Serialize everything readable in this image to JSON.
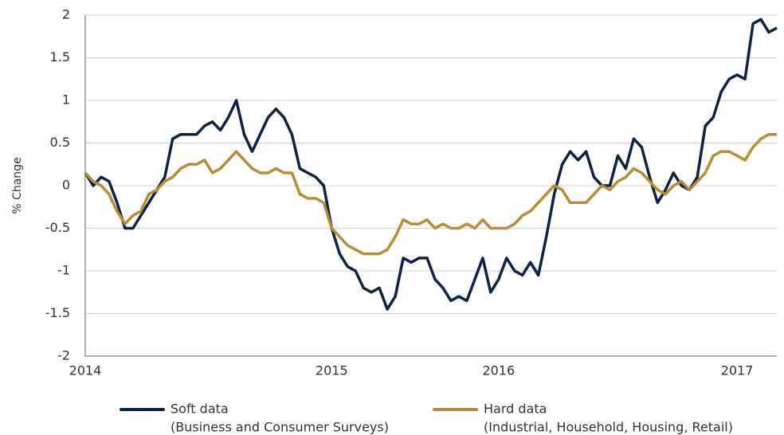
{
  "chart_data": {
    "type": "line",
    "y_label": "% Change",
    "categories": [
      "2014",
      null,
      null,
      null,
      null,
      null,
      null,
      null,
      null,
      null,
      null,
      null,
      null,
      null,
      null,
      null,
      null,
      null,
      null,
      null,
      null,
      null,
      null,
      null,
      null,
      null,
      null,
      null,
      null,
      null,
      null,
      "2015",
      null,
      null,
      null,
      null,
      null,
      null,
      null,
      null,
      null,
      null,
      null,
      null,
      null,
      null,
      null,
      null,
      null,
      null,
      null,
      null,
      "2016",
      null,
      null,
      null,
      null,
      null,
      null,
      null,
      null,
      null,
      null,
      null,
      null,
      null,
      null,
      null,
      null,
      null,
      null,
      null,
      null,
      null,
      null,
      null,
      null,
      null,
      null,
      null,
      null,
      null,
      "2017",
      null,
      null,
      null,
      null,
      null
    ],
    "series": [
      {
        "name": "Soft data",
        "legend_note": "(Business and Consumer Surveys)",
        "color": "#0e2344",
        "values": [
          0.15,
          0.0,
          0.1,
          0.05,
          -0.2,
          -0.5,
          -0.5,
          -0.35,
          -0.2,
          -0.05,
          0.1,
          0.55,
          0.6,
          0.6,
          0.6,
          0.7,
          0.75,
          0.65,
          0.8,
          1.0,
          0.6,
          0.4,
          0.6,
          0.8,
          0.9,
          0.8,
          0.6,
          0.2,
          0.15,
          0.1,
          0.0,
          -0.5,
          -0.8,
          -0.95,
          -1.0,
          -1.2,
          -1.25,
          -1.2,
          -1.45,
          -1.3,
          -0.85,
          -0.9,
          -0.85,
          -0.85,
          -1.1,
          -1.2,
          -1.35,
          -1.3,
          -1.35,
          -1.1,
          -0.85,
          -1.25,
          -1.1,
          -0.85,
          -1.0,
          -1.05,
          -0.9,
          -1.05,
          -0.6,
          -0.1,
          0.25,
          0.4,
          0.3,
          0.4,
          0.1,
          0.0,
          0.0,
          0.35,
          0.2,
          0.55,
          0.45,
          0.1,
          -0.2,
          -0.05,
          0.15,
          0.0,
          -0.05,
          0.1,
          0.7,
          0.8,
          1.1,
          1.25,
          1.3,
          1.25,
          1.9,
          1.95,
          1.8,
          1.85
        ]
      },
      {
        "name": "Hard data",
        "legend_note": "(Industrial, Household, Housing, Retail)",
        "color": "#b58e35",
        "values": [
          0.15,
          0.05,
          0.0,
          -0.1,
          -0.3,
          -0.45,
          -0.35,
          -0.3,
          -0.1,
          -0.05,
          0.05,
          0.1,
          0.2,
          0.25,
          0.25,
          0.3,
          0.15,
          0.2,
          0.3,
          0.4,
          0.3,
          0.2,
          0.15,
          0.15,
          0.2,
          0.15,
          0.15,
          -0.1,
          -0.15,
          -0.15,
          -0.2,
          -0.5,
          -0.6,
          -0.7,
          -0.75,
          -0.8,
          -0.8,
          -0.8,
          -0.75,
          -0.6,
          -0.4,
          -0.45,
          -0.45,
          -0.4,
          -0.5,
          -0.45,
          -0.5,
          -0.5,
          -0.45,
          -0.5,
          -0.4,
          -0.5,
          -0.5,
          -0.5,
          -0.45,
          -0.35,
          -0.3,
          -0.2,
          -0.1,
          0.0,
          -0.05,
          -0.2,
          -0.2,
          -0.2,
          -0.1,
          0.0,
          -0.05,
          0.05,
          0.1,
          0.2,
          0.15,
          0.05,
          -0.05,
          -0.1,
          0.0,
          0.05,
          -0.05,
          0.05,
          0.15,
          0.35,
          0.4,
          0.4,
          0.35,
          0.3,
          0.45,
          0.55,
          0.6,
          0.6
        ]
      }
    ],
    "ylim": [
      -2,
      2
    ],
    "yticks": [
      -2,
      -1.5,
      -1,
      -0.5,
      0,
      0.5,
      1,
      1.5,
      2
    ],
    "grid": true
  }
}
